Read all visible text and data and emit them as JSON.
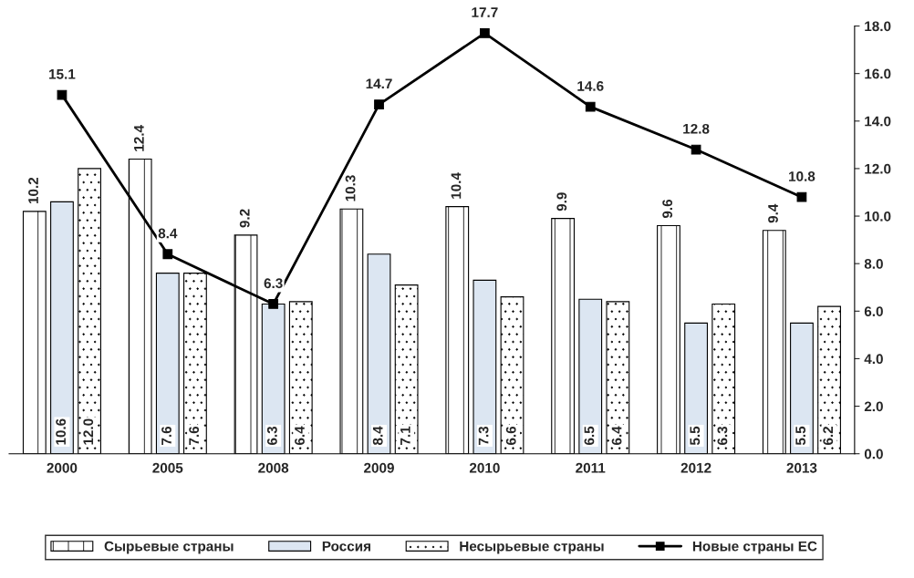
{
  "chart_data": {
    "type": "bar",
    "categories": [
      "2000",
      "2005",
      "2008",
      "2009",
      "2010",
      "2011",
      "2012",
      "2013"
    ],
    "series": [
      {
        "name": "Сырьевые страны",
        "color": "#ffffff",
        "values": [
          10.2,
          12.4,
          9.2,
          10.3,
          10.4,
          9.9,
          9.6,
          9.4
        ],
        "value_labels": [
          "10.2",
          "12.4",
          "9.2",
          "10.3",
          "10.4",
          "9.9",
          "9.6",
          "9.4"
        ]
      },
      {
        "name": "Россия",
        "color": "#dce6f2",
        "values": [
          10.6,
          7.6,
          6.3,
          8.4,
          7.3,
          6.5,
          5.5,
          5.5
        ],
        "value_labels": [
          "10.6",
          "7.6",
          "6.3",
          "8.4",
          "7.3",
          "6.5",
          "5.5",
          "5.5"
        ]
      },
      {
        "name": "Несырьевые страны",
        "color": "#ffffff",
        "values": [
          12.0,
          7.6,
          6.4,
          7.1,
          6.6,
          6.4,
          6.3,
          6.2
        ],
        "value_labels": [
          "12.0",
          "7.6",
          "6.4",
          "7.1",
          "6.6",
          "6.4",
          "6.3",
          "6.2"
        ]
      },
      {
        "name": "Новые страны ЕС",
        "type": "line",
        "color": "#000000",
        "marker": "square",
        "values": [
          15.1,
          8.4,
          6.3,
          14.7,
          17.7,
          14.6,
          12.8,
          10.8
        ],
        "value_labels": [
          "15.1",
          "8.4",
          "6.3",
          "14.7",
          "17.7",
          "14.6",
          "12.8",
          "10.8"
        ]
      }
    ],
    "ylim": [
      0,
      18
    ],
    "yticks": [
      {
        "value": 0,
        "label": "0.0"
      },
      {
        "value": 2,
        "label": "2.0"
      },
      {
        "value": 4,
        "label": "4.0"
      },
      {
        "value": 6,
        "label": "6.0"
      },
      {
        "value": 8,
        "label": "8.0"
      },
      {
        "value": 10,
        "label": "10.0"
      },
      {
        "value": 12,
        "label": "12.0"
      },
      {
        "value": 14,
        "label": "14.0"
      },
      {
        "value": 16,
        "label": "16.0"
      },
      {
        "value": 18,
        "label": "18.0"
      }
    ],
    "data_labels": true,
    "grid": false,
    "legend": "bottom"
  }
}
